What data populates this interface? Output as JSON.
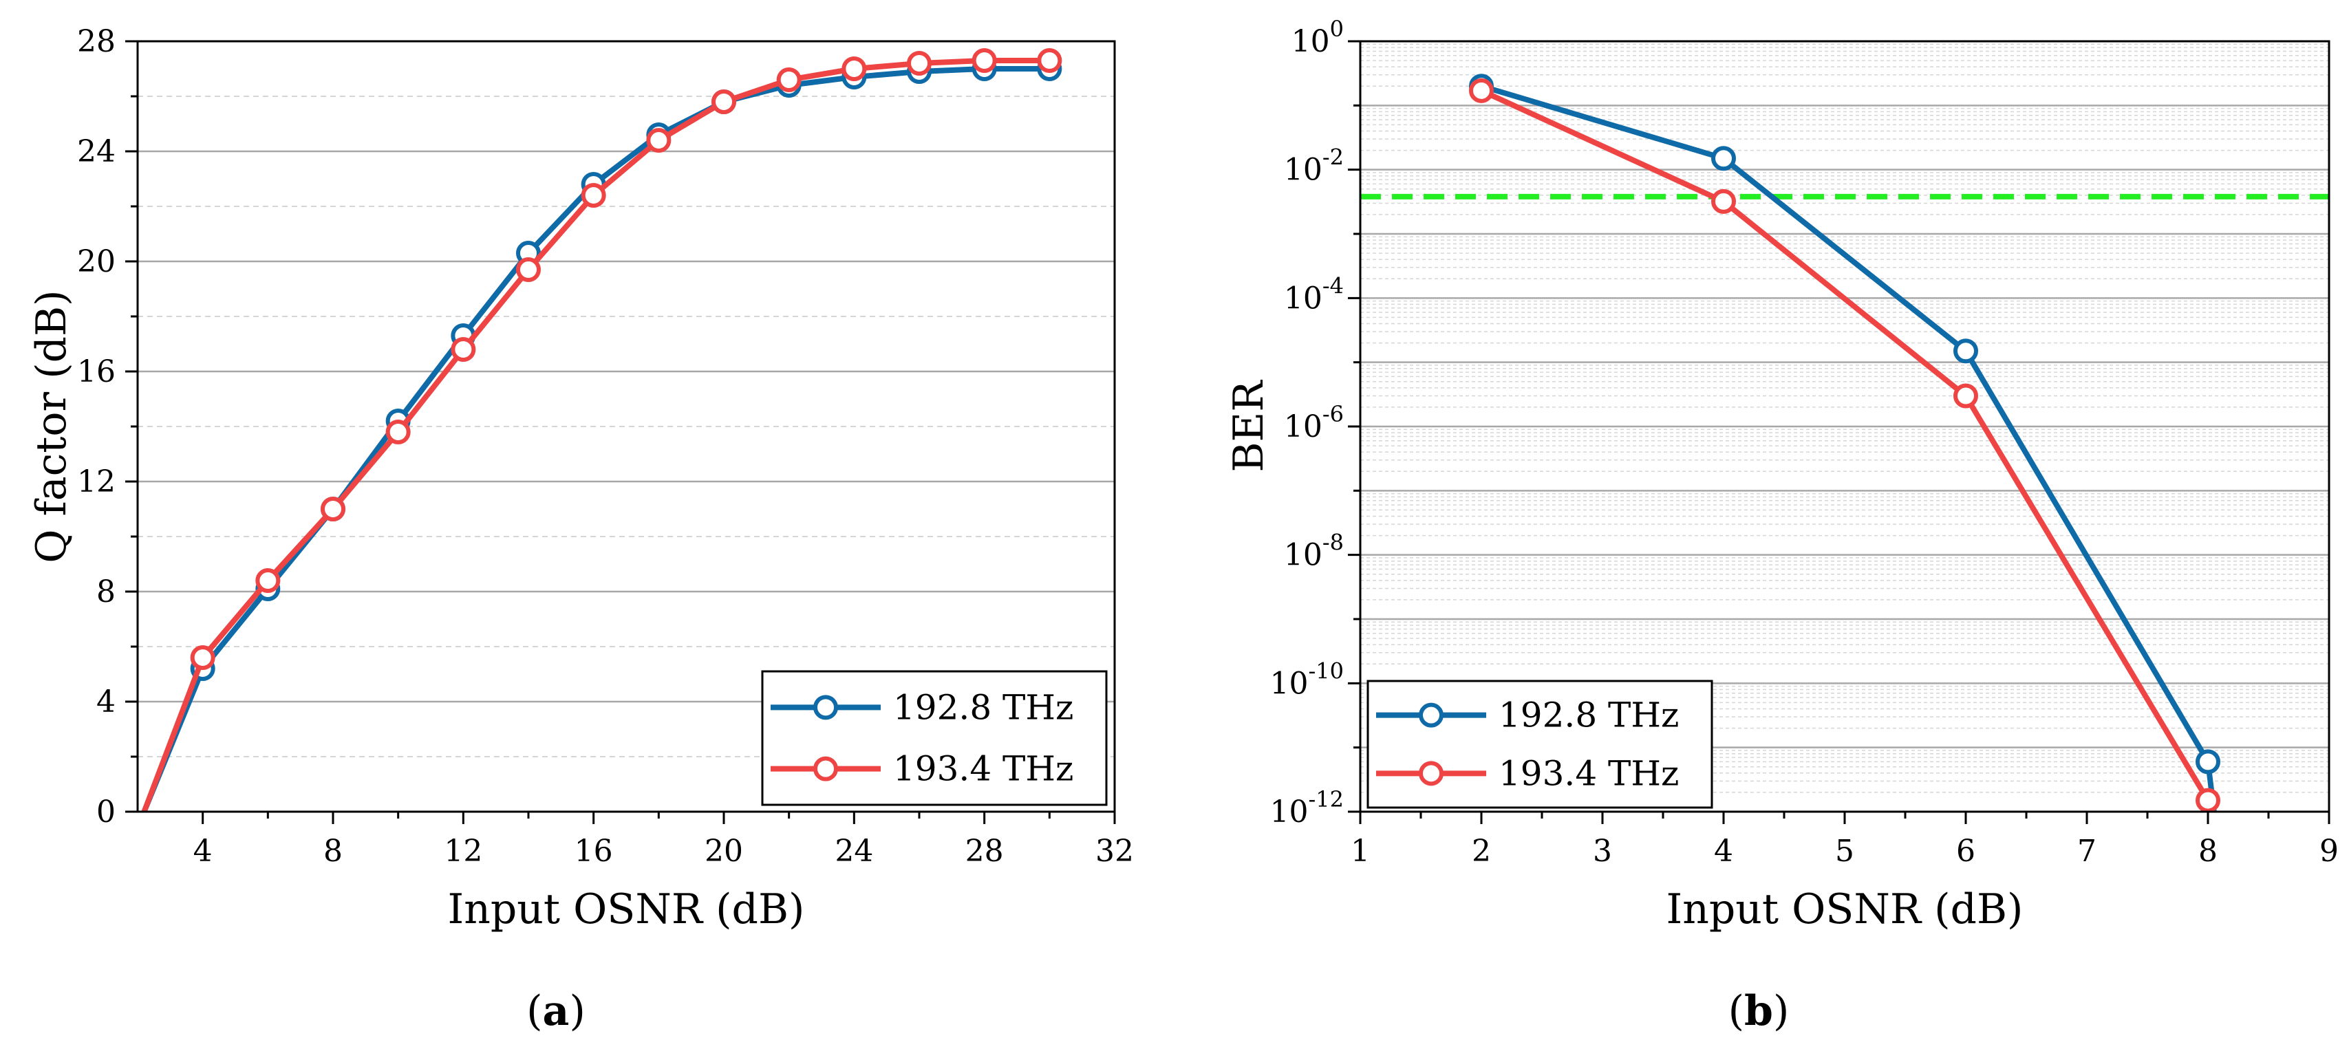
{
  "colors": {
    "series_blue": "#0f6aa8",
    "series_red": "#ef4444",
    "threshold": "#22ee22",
    "grid_major": "#a8a8a8",
    "grid_minor": "#d6d6d6"
  },
  "panel_labels": {
    "a": {
      "open": "(",
      "letter": "a",
      "close": ")"
    },
    "b": {
      "open": "(",
      "letter": "b",
      "close": ")"
    }
  },
  "chart_data": [
    {
      "id": "a",
      "type": "line",
      "title": "",
      "xlabel": "Input OSNR (dB)",
      "ylabel": "Q factor (dB)",
      "xlim": [
        2,
        32
      ],
      "ylim": [
        0,
        28
      ],
      "x_ticks": [
        4,
        8,
        12,
        16,
        20,
        24,
        28,
        32
      ],
      "x_tick_labels": [
        "4",
        "8",
        "12",
        "16",
        "20",
        "24",
        "28",
        "32"
      ],
      "y_ticks": [
        0,
        4,
        8,
        12,
        16,
        20,
        24,
        28
      ],
      "y_tick_labels": [
        "0",
        "4",
        "8",
        "12",
        "16",
        "20",
        "24",
        "28"
      ],
      "grid": "horizontal",
      "legend_position": "bottom-right",
      "series": [
        {
          "name": "192.8 THz",
          "color": "#0f6aa8",
          "x": [
            2.2,
            4,
            6,
            8,
            10,
            12,
            14,
            16,
            18,
            20,
            22,
            24,
            26,
            28,
            30
          ],
          "y": [
            0,
            5.2,
            8.1,
            11.0,
            14.2,
            17.3,
            20.3,
            22.8,
            24.6,
            25.8,
            26.4,
            26.7,
            26.9,
            27.0,
            27.0
          ],
          "markers": [
            false,
            true,
            true,
            true,
            true,
            true,
            true,
            true,
            true,
            true,
            true,
            true,
            true,
            true,
            true
          ]
        },
        {
          "name": "193.4 THz",
          "color": "#ef4444",
          "x": [
            2.2,
            4,
            6,
            8,
            10,
            12,
            14,
            16,
            18,
            20,
            22,
            24,
            26,
            28,
            30
          ],
          "y": [
            0,
            5.6,
            8.4,
            11.0,
            13.8,
            16.8,
            19.7,
            22.4,
            24.4,
            25.8,
            26.6,
            27.0,
            27.2,
            27.3,
            27.3
          ],
          "markers": [
            false,
            true,
            true,
            true,
            true,
            true,
            true,
            true,
            true,
            true,
            true,
            true,
            true,
            true,
            true
          ]
        }
      ]
    },
    {
      "id": "b",
      "type": "line",
      "title": "",
      "xlabel": "Input OSNR (dB)",
      "ylabel": "BER",
      "y_scale": "log",
      "xlim": [
        1,
        9
      ],
      "ylim": [
        1e-12,
        1
      ],
      "x_ticks": [
        1,
        2,
        3,
        4,
        5,
        6,
        7,
        8,
        9
      ],
      "x_tick_labels": [
        "1",
        "2",
        "3",
        "4",
        "5",
        "6",
        "7",
        "8",
        "9"
      ],
      "y_tick_exponents": [
        -12,
        -10,
        -8,
        -6,
        -4,
        -2,
        0
      ],
      "y_tick_base": "10",
      "y_tick_exp_labels": [
        "-12",
        "-10",
        "-8",
        "-6",
        "-4",
        "-2",
        "0"
      ],
      "grid": "horizontal major and minor (log)",
      "legend_position": "bottom-left",
      "threshold": {
        "value": 0.0038,
        "style": "dashed",
        "color": "#22ee22"
      },
      "series": [
        {
          "name": "192.8 THz",
          "color": "#0f6aa8",
          "x": [
            2,
            4,
            6,
            8,
            8.05
          ],
          "y": [
            0.2,
            0.015,
            1.5e-05,
            6e-12,
            1e-12
          ],
          "markers": [
            true,
            true,
            true,
            true,
            false
          ]
        },
        {
          "name": "193.4 THz",
          "color": "#ef4444",
          "x": [
            2,
            4,
            6,
            8
          ],
          "y": [
            0.17,
            0.0032,
            3e-06,
            1.5e-12
          ],
          "markers": [
            true,
            true,
            true,
            true
          ]
        }
      ]
    }
  ]
}
